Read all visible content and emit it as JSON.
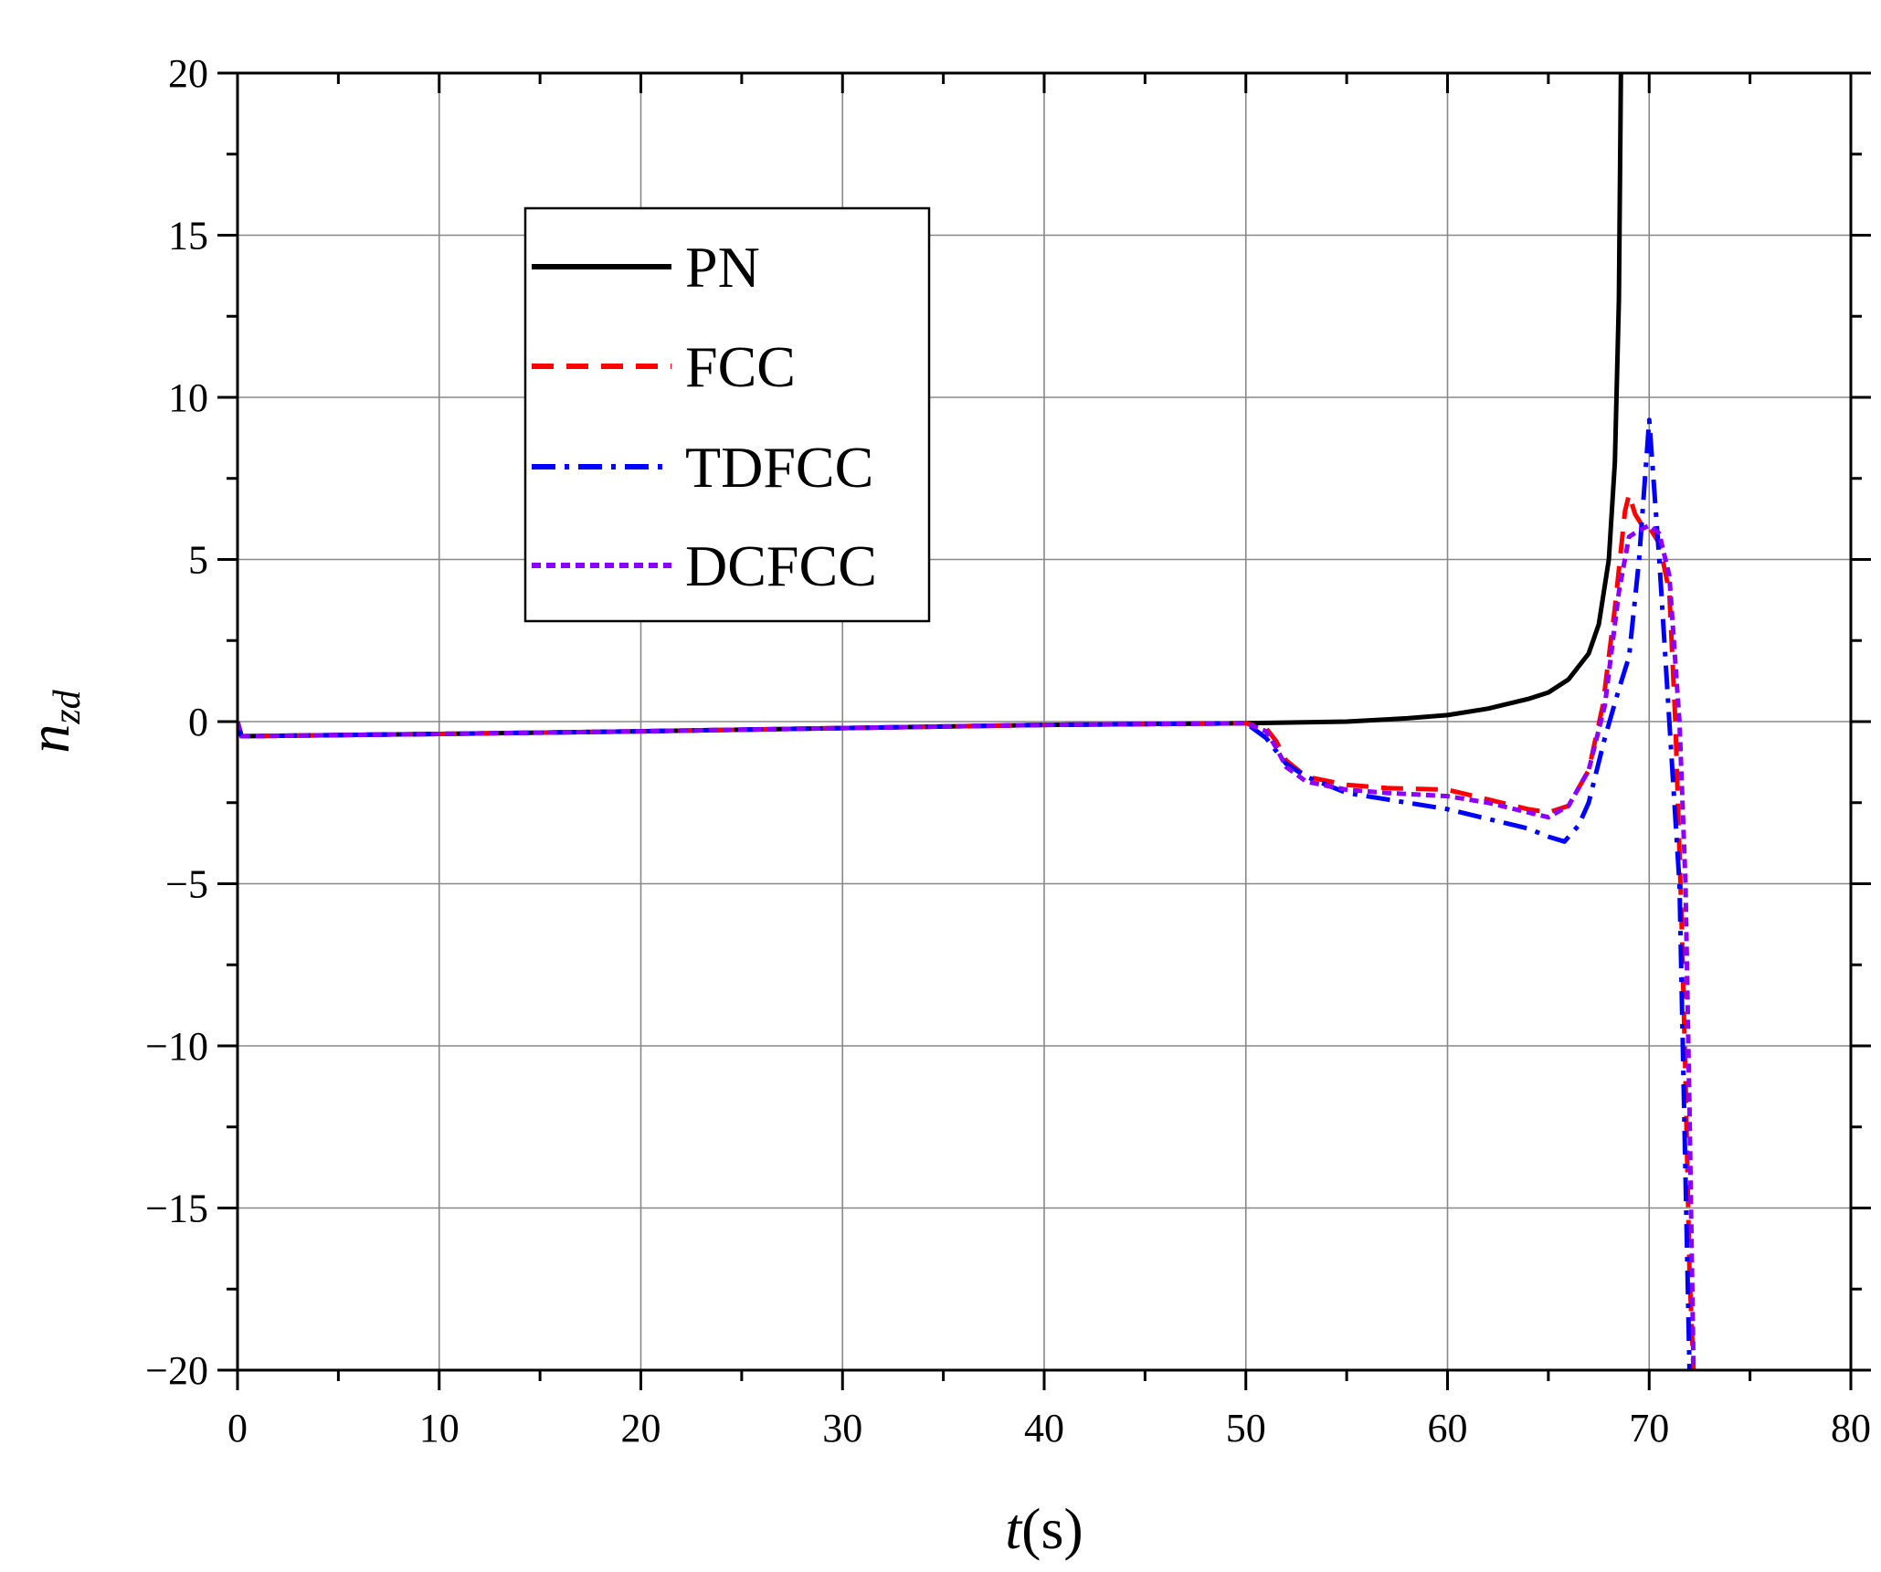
{
  "chart_data": {
    "type": "line",
    "title": "",
    "xlabel": {
      "main": "t",
      "unit": "(s)"
    },
    "ylabel": {
      "main": "n",
      "subscript": "zd"
    },
    "xlim": [
      0,
      80
    ],
    "ylim": [
      -20,
      20
    ],
    "x_ticks": [
      0,
      10,
      20,
      30,
      40,
      50,
      60,
      70,
      80
    ],
    "y_ticks": [
      -20,
      -15,
      -10,
      -5,
      0,
      5,
      10,
      15,
      20
    ],
    "x_tick_labels": [
      "0",
      "10",
      "20",
      "30",
      "40",
      "50",
      "60",
      "70",
      "80"
    ],
    "y_tick_labels": [
      "−20",
      "−15",
      "−10",
      "−5",
      "0",
      "5",
      "10",
      "15",
      "20"
    ],
    "grid": true,
    "legend_position": "top-left",
    "series": [
      {
        "name": "PN",
        "color": "#000000",
        "style": "solid",
        "x": [
          0,
          0.2,
          10,
          20,
          30,
          40,
          50,
          55,
          58,
          60,
          62,
          64,
          65,
          66,
          67,
          67.5,
          68,
          68.3,
          68.5,
          68.6
        ],
        "y": [
          0,
          -0.45,
          -0.38,
          -0.3,
          -0.2,
          -0.1,
          -0.05,
          0.0,
          0.1,
          0.2,
          0.4,
          0.7,
          0.9,
          1.3,
          2.1,
          3.0,
          5.0,
          8.0,
          13.0,
          20.0
        ]
      },
      {
        "name": "FCC",
        "color": "#ff0000",
        "style": "dashed",
        "x": [
          0,
          0.2,
          10,
          20,
          30,
          40,
          50,
          51,
          51.5,
          52,
          53,
          55,
          57,
          60,
          62,
          64,
          65,
          66,
          67,
          67.7,
          68.3,
          68.8,
          69,
          69.3,
          69.7,
          70,
          70.5,
          71,
          71.3,
          71.6,
          71.8,
          72,
          72.2
        ],
        "y": [
          0,
          -0.45,
          -0.38,
          -0.3,
          -0.2,
          -0.1,
          -0.05,
          -0.2,
          -0.6,
          -1.2,
          -1.7,
          -1.95,
          -2.05,
          -2.1,
          -2.4,
          -2.7,
          -2.8,
          -2.6,
          -1.5,
          0.5,
          3.5,
          6.5,
          7.0,
          6.4,
          6.0,
          6.0,
          5.5,
          4.0,
          0.0,
          -6.0,
          -11.0,
          -17.0,
          -20.0
        ]
      },
      {
        "name": "TDFCC",
        "color": "#0000ff",
        "style": "dashdot",
        "x": [
          0,
          0.2,
          10,
          20,
          30,
          40,
          50,
          51,
          52,
          53,
          55,
          57,
          60,
          62,
          64,
          65,
          65.8,
          66.5,
          67,
          67.8,
          68.5,
          69,
          69.5,
          70,
          70.5,
          71,
          71.5,
          71.8,
          72
        ],
        "y": [
          0,
          -0.45,
          -0.38,
          -0.3,
          -0.2,
          -0.1,
          -0.05,
          -0.5,
          -1.3,
          -1.7,
          -2.2,
          -2.4,
          -2.7,
          -3.0,
          -3.3,
          -3.55,
          -3.7,
          -3.2,
          -2.5,
          -0.5,
          1.0,
          2.0,
          5.0,
          9.3,
          5.0,
          0.0,
          -5.0,
          -14.0,
          -20.0
        ]
      },
      {
        "name": "DCFCC",
        "color": "#8b00ff",
        "style": "dotted",
        "x": [
          0,
          0.2,
          10,
          20,
          30,
          40,
          50,
          51,
          51.5,
          52,
          53,
          55,
          57,
          60,
          62,
          64,
          65,
          66,
          67,
          67.8,
          68.5,
          69,
          69.5,
          70,
          70.5,
          71,
          71.5,
          71.8,
          72,
          72.2
        ],
        "y": [
          0,
          -0.45,
          -0.38,
          -0.3,
          -0.2,
          -0.1,
          -0.05,
          -0.3,
          -0.8,
          -1.4,
          -1.85,
          -2.1,
          -2.2,
          -2.3,
          -2.5,
          -2.8,
          -2.95,
          -2.6,
          -1.5,
          0.5,
          4.0,
          5.7,
          5.9,
          6.05,
          5.8,
          4.5,
          0.0,
          -5.0,
          -12.0,
          -20.0
        ]
      }
    ]
  }
}
